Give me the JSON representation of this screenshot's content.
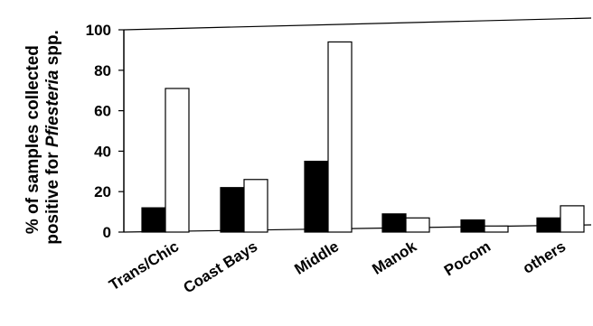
{
  "chart_data": {
    "type": "bar",
    "categories": [
      "Trans/Chic",
      "Coast Bays",
      "Middle",
      "Manok",
      "Pocom",
      "others"
    ],
    "series": [
      {
        "values": [
          12,
          22,
          35,
          9,
          6,
          7
        ],
        "color": "#000000"
      },
      {
        "values": [
          71,
          26,
          94,
          7,
          3,
          13
        ],
        "color": "#ffffff"
      }
    ],
    "ylabel": {
      "line1": "% of samples collected",
      "line2_prefix": "positive for ",
      "line2_italic": "Pfiesteria",
      "line2_suffix": " spp."
    },
    "yticks": [
      "0",
      "20",
      "40",
      "60",
      "80",
      "100"
    ],
    "ylim": [
      0,
      100
    ],
    "grid": false,
    "legend": "none"
  }
}
